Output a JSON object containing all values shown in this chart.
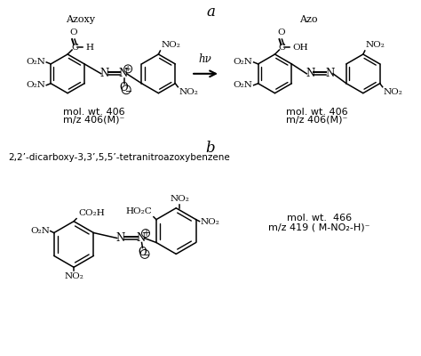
{
  "bg_color": "#ffffff",
  "text_color": "#000000",
  "line_color": "#000000",
  "title_a": "a",
  "title_b": "b",
  "label_azoxy": "Azoxy",
  "label_azo": "Azo",
  "compound_name_b": "2,2’-dicarboxy-3,3’,5,5’-tetranitroazoxybenzene",
  "mol_wt_a": "mol. wt. 406",
  "mz_a": "m/z 406(M)⁻",
  "mol_wt_b": "mol. wt.  466",
  "mz_b": "m/z 419 ( M-NO₂-H)⁻"
}
